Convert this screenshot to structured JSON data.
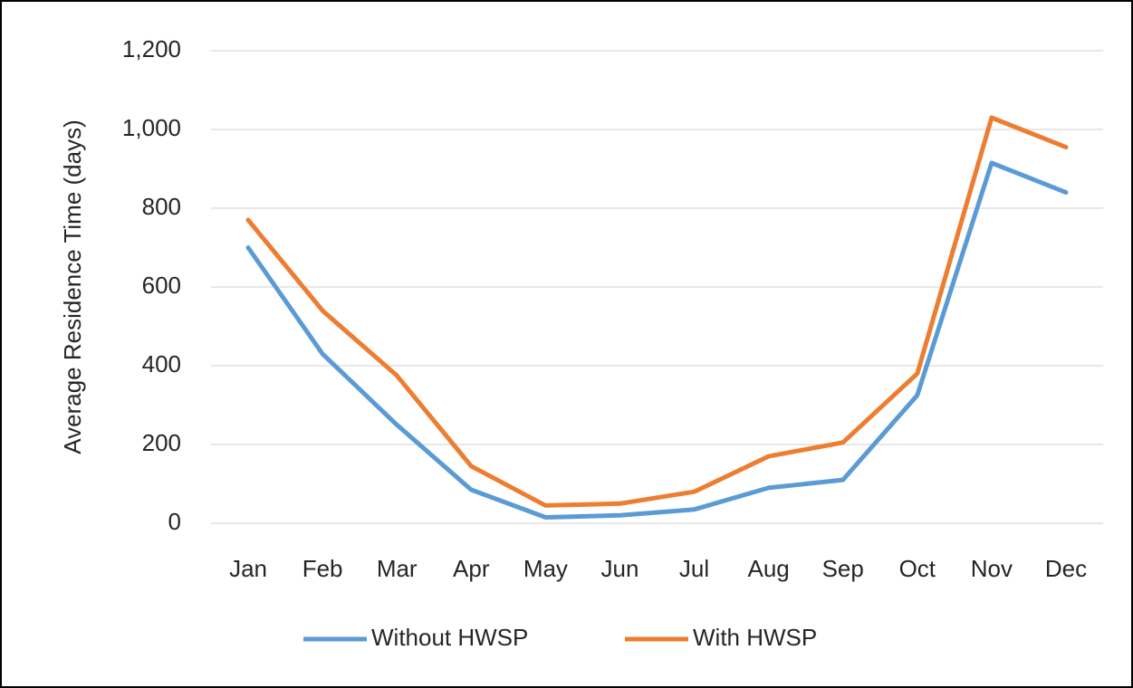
{
  "chart_data": {
    "type": "line",
    "y_label": "Average Residence Time (days)",
    "categories": [
      "Jan",
      "Feb",
      "Mar",
      "Apr",
      "May",
      "Jun",
      "Jul",
      "Aug",
      "Sep",
      "Oct",
      "Nov",
      "Dec"
    ],
    "series": [
      {
        "name": "Without HWSP",
        "color": "#5b9bd5",
        "values": [
          700,
          430,
          250,
          85,
          15,
          20,
          35,
          90,
          110,
          325,
          915,
          840
        ]
      },
      {
        "name": "With HWSP",
        "color": "#ed7d31",
        "values": [
          770,
          540,
          375,
          145,
          45,
          50,
          80,
          170,
          205,
          380,
          1030,
          955
        ]
      }
    ],
    "ylim": [
      0,
      1200
    ],
    "yticks": [
      0,
      200,
      400,
      600,
      800,
      {
        "value": 1000,
        "label": "1,000"
      },
      {
        "value": 1200,
        "label": "1,200"
      }
    ],
    "grid": true,
    "legend": "bottom"
  }
}
